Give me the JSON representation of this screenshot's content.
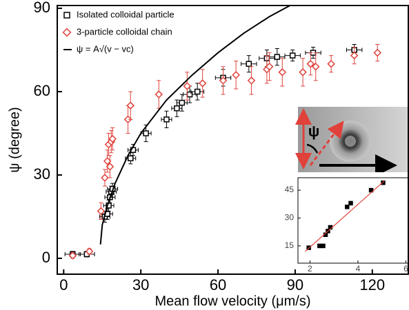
{
  "chart_data": [
    {
      "type": "scatter",
      "x_label": "Mean flow velocity (μm/s)",
      "y_label": "ψ (degree)",
      "xlim": [
        -2.5,
        134
      ],
      "ylim": [
        -5.7,
        91
      ],
      "xticks": [
        0,
        30,
        60,
        90,
        120
      ],
      "yticks": [
        0,
        30,
        60,
        90
      ],
      "legend": "upper left",
      "series": [
        {
          "name": "Isolated colloidal particle",
          "color": "#000000",
          "marker": "square",
          "x": [
            3.5,
            9,
            16,
            17,
            17.5,
            18,
            18.5,
            19,
            26,
            27,
            32,
            40,
            44,
            46,
            49,
            52,
            62,
            72,
            79,
            83,
            89,
            97,
            113
          ],
          "values": [
            1.5,
            1.5,
            15,
            16,
            19,
            22,
            24,
            25,
            36,
            39,
            45,
            50,
            54,
            56,
            59,
            60,
            65,
            70,
            72,
            72.5,
            73,
            74,
            75
          ],
          "x_errors": [
            3,
            3,
            2,
            2,
            2,
            2,
            2,
            2,
            2,
            2,
            2,
            2,
            2,
            2,
            2.5,
            2.5,
            3,
            3,
            3,
            3,
            3,
            3,
            3
          ],
          "y_errors": [
            1,
            1,
            2,
            2,
            2,
            2,
            2,
            2,
            2,
            2,
            3,
            3,
            3,
            3,
            3,
            3,
            3,
            3,
            3,
            3,
            2,
            2,
            2
          ]
        },
        {
          "name": "3-particle colloidal chain",
          "color": "#e0413a",
          "marker": "diamond",
          "x": [
            3.5,
            10,
            14.5,
            16,
            17,
            17.5,
            18,
            18.5,
            19,
            25,
            26,
            37,
            48,
            54,
            62,
            67,
            73,
            79,
            80,
            85,
            93,
            96,
            98,
            104,
            113,
            122
          ],
          "values": [
            1,
            2.5,
            17,
            29,
            35,
            41,
            33,
            42,
            43,
            50,
            55,
            59,
            62,
            63,
            64,
            66,
            64,
            68,
            69,
            67,
            67,
            70,
            69,
            70,
            73,
            74
          ],
          "y_errors": [
            1,
            1,
            3,
            3,
            4,
            4,
            4,
            4,
            4,
            5,
            5,
            5,
            5,
            5,
            5,
            5,
            5,
            5,
            5,
            5,
            5,
            4,
            5,
            3,
            3,
            3
          ]
        },
        {
          "name": "ψ = A√(v − vc)",
          "color": "#000000",
          "marker": "line",
          "x": [
            14.3,
            15,
            17,
            20,
            25,
            30,
            40,
            50,
            60,
            70,
            80,
            88
          ],
          "values": [
            5,
            12,
            19,
            27,
            37,
            45,
            57,
            66,
            74,
            81,
            87,
            91
          ]
        }
      ]
    },
    {
      "type": "scatter",
      "xlim": [
        1.5,
        6.1
      ],
      "ylim": [
        5.7,
        51.7
      ],
      "xticks": [
        2,
        4,
        6
      ],
      "yticks": [
        15,
        30,
        45
      ],
      "inset_label": "ψ",
      "series": [
        {
          "color": "#000000",
          "marker": "filled-square",
          "x": [
            1.95,
            2.4,
            2.55,
            2.65,
            2.75,
            2.85,
            3.55,
            3.7,
            4.55,
            5.05
          ],
          "values": [
            14,
            15,
            15,
            21,
            23,
            25,
            36,
            38,
            45,
            49
          ]
        },
        {
          "color": "#e0413a",
          "marker": "line",
          "x": [
            1.8,
            5.1
          ],
          "values": [
            12,
            50
          ]
        }
      ]
    }
  ]
}
